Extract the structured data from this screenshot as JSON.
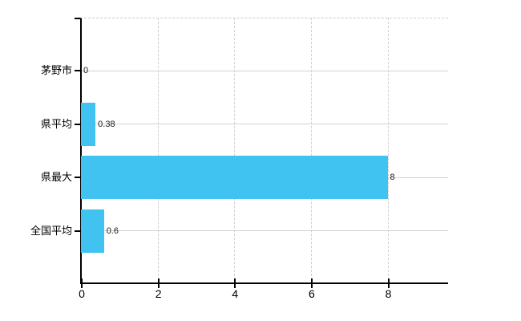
{
  "chart_data": {
    "type": "bar",
    "orientation": "horizontal",
    "title": "",
    "xlabel": "",
    "ylabel": "",
    "categories": [
      "茅野市",
      "県平均",
      "県最大",
      "全国平均"
    ],
    "values": [
      0,
      0.38,
      8,
      0.6
    ],
    "value_labels": [
      "0",
      "0.38",
      "8",
      "0.6"
    ],
    "x_ticks": [
      {
        "value": 0,
        "label": "0"
      },
      {
        "value": 2,
        "label": "2"
      },
      {
        "value": 4,
        "label": "4"
      },
      {
        "value": 6,
        "label": "6"
      },
      {
        "value": 8,
        "label": "8"
      }
    ],
    "xlim": [
      0,
      9.6
    ],
    "grid": "on",
    "grid_vertical_style": "dashed",
    "grid_horizontal_style": "solid",
    "legend": "none",
    "colors": {
      "bar": "#41c3f2",
      "grid_horizontal": "#cdd5c9",
      "grid_vertical": "#d3ccd2",
      "plot_top_border": "#d3ccd2",
      "axis": "#000000",
      "value_label": "#1a1a1a",
      "background": "#ffffff"
    }
  }
}
